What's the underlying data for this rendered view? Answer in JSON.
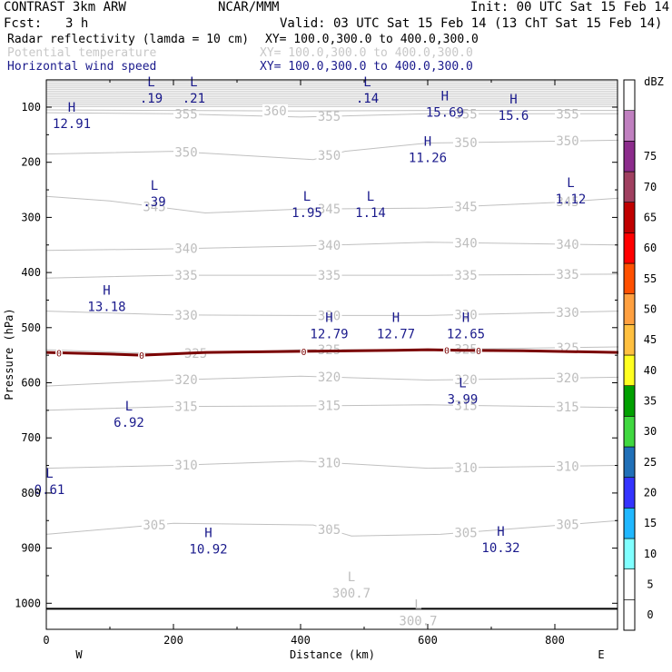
{
  "header": {
    "model": "CONTRAST  3km ARW",
    "org": "NCAR/MMM",
    "init": "Init: 00 UTC Sat 15 Feb 14",
    "fcst_label": "Fcst:",
    "fcst_value": "3 h",
    "valid": "Valid: 03 UTC Sat 15 Feb 14 (13 ChT Sat 15 Feb 14)",
    "fields": [
      {
        "label": "Radar reflectivity (lamda = 10 cm)",
        "xy": "XY= 100.0,300.0 to 400.0,300.0",
        "color": "#000000"
      },
      {
        "label": "Potential temperature",
        "xy": "XY= 100.0,300.0 to 400.0,300.0",
        "color": "#c8c8c8"
      },
      {
        "label": "Horizontal wind speed",
        "xy": "XY= 100.0,300.0 to 400.0,300.0",
        "color": "#1a1a8c"
      }
    ]
  },
  "chart_data": {
    "type": "cross-section",
    "xlabel": "Distance (km)",
    "ylabel": "Pressure (hPa)",
    "xlim": [
      0,
      900
    ],
    "ylim": [
      1045,
      45
    ],
    "x_ticks": [
      0,
      200,
      400,
      600,
      800
    ],
    "y_ticks": [
      100,
      200,
      300,
      400,
      500,
      600,
      700,
      800,
      900,
      1000
    ],
    "corner_labels": {
      "left": "W",
      "right": "E"
    },
    "theta_lines": [
      {
        "level": 305,
        "points": [
          [
            0,
            875
          ],
          [
            200,
            855
          ],
          [
            420,
            858
          ],
          [
            480,
            878
          ],
          [
            620,
            875
          ],
          [
            900,
            850
          ]
        ],
        "labels": [
          [
            170,
            "305"
          ],
          [
            445,
            "305"
          ],
          [
            660,
            "305"
          ],
          [
            820,
            "305"
          ]
        ]
      },
      {
        "level": 310,
        "points": [
          [
            0,
            755
          ],
          [
            200,
            750
          ],
          [
            400,
            742
          ],
          [
            600,
            755
          ],
          [
            900,
            750
          ]
        ],
        "labels": [
          [
            220,
            "310"
          ],
          [
            445,
            "310"
          ],
          [
            660,
            "310"
          ],
          [
            820,
            "310"
          ]
        ]
      },
      {
        "level": 315,
        "points": [
          [
            0,
            650
          ],
          [
            200,
            643
          ],
          [
            400,
            642
          ],
          [
            600,
            640
          ],
          [
            900,
            645
          ]
        ],
        "labels": [
          [
            220,
            "315"
          ],
          [
            445,
            "315"
          ],
          [
            660,
            "315"
          ],
          [
            820,
            "315"
          ]
        ]
      },
      {
        "level": 320,
        "points": [
          [
            0,
            606
          ],
          [
            200,
            595
          ],
          [
            400,
            588
          ],
          [
            600,
            595
          ],
          [
            900,
            590
          ]
        ],
        "labels": [
          [
            220,
            "320"
          ],
          [
            445,
            "320"
          ],
          [
            660,
            "320"
          ],
          [
            820,
            "320"
          ]
        ]
      },
      {
        "level": 325,
        "points": [
          [
            0,
            540
          ],
          [
            200,
            548
          ],
          [
            400,
            540
          ],
          [
            600,
            540
          ],
          [
            900,
            535
          ]
        ],
        "labels": [
          [
            235,
            "325"
          ],
          [
            445,
            "325"
          ],
          [
            660,
            "325"
          ],
          [
            820,
            "325"
          ]
        ]
      },
      {
        "level": 330,
        "points": [
          [
            0,
            470
          ],
          [
            200,
            477
          ],
          [
            400,
            478
          ],
          [
            600,
            478
          ],
          [
            900,
            470
          ]
        ],
        "labels": [
          [
            220,
            "330"
          ],
          [
            445,
            "330"
          ],
          [
            660,
            "330"
          ],
          [
            820,
            "330"
          ]
        ]
      },
      {
        "level": 335,
        "points": [
          [
            0,
            410
          ],
          [
            200,
            405
          ],
          [
            400,
            405
          ],
          [
            600,
            405
          ],
          [
            900,
            403
          ]
        ],
        "labels": [
          [
            220,
            "335"
          ],
          [
            445,
            "335"
          ],
          [
            660,
            "335"
          ],
          [
            820,
            "335"
          ]
        ]
      },
      {
        "level": 340,
        "points": [
          [
            0,
            360
          ],
          [
            200,
            357
          ],
          [
            400,
            352
          ],
          [
            600,
            345
          ],
          [
            900,
            350
          ]
        ],
        "labels": [
          [
            220,
            "340"
          ],
          [
            445,
            "340"
          ],
          [
            660,
            "340"
          ],
          [
            820,
            "340"
          ]
        ]
      },
      {
        "level": 345,
        "points": [
          [
            0,
            262
          ],
          [
            100,
            270
          ],
          [
            250,
            292
          ],
          [
            400,
            285
          ],
          [
            600,
            283
          ],
          [
            800,
            273
          ],
          [
            900,
            265
          ]
        ],
        "labels": [
          [
            170,
            "345"
          ],
          [
            445,
            "345"
          ],
          [
            660,
            "345"
          ],
          [
            820,
            "345"
          ]
        ]
      },
      {
        "level": 350,
        "points": [
          [
            0,
            185
          ],
          [
            200,
            180
          ],
          [
            420,
            195
          ],
          [
            470,
            180
          ],
          [
            600,
            165
          ],
          [
            900,
            160
          ]
        ],
        "labels": [
          [
            220,
            "350"
          ],
          [
            445,
            "350"
          ],
          [
            660,
            "350"
          ],
          [
            820,
            "350"
          ]
        ]
      },
      {
        "level": 355,
        "points": [
          [
            0,
            110
          ],
          [
            200,
            112
          ],
          [
            400,
            118
          ],
          [
            600,
            112
          ],
          [
            900,
            112
          ]
        ],
        "labels": [
          [
            220,
            "355"
          ],
          [
            445,
            "355"
          ],
          [
            660,
            "355"
          ],
          [
            820,
            "355"
          ]
        ]
      },
      {
        "level": 360,
        "points": [
          [
            0,
            105
          ],
          [
            200,
            106
          ],
          [
            400,
            107
          ],
          [
            600,
            106
          ],
          [
            900,
            106
          ]
        ],
        "labels": [
          [
            360,
            "360"
          ]
        ]
      }
    ],
    "zero_dbz_line": {
      "value": "0",
      "points": [
        [
          0,
          545
        ],
        [
          100,
          548
        ],
        [
          150,
          550
        ],
        [
          250,
          545
        ],
        [
          400,
          543
        ],
        [
          550,
          541
        ],
        [
          600,
          540
        ],
        [
          650,
          541
        ],
        [
          750,
          542
        ],
        [
          900,
          545
        ]
      ],
      "labels": [
        20,
        150,
        405,
        630,
        680
      ]
    },
    "wind_extrema": [
      {
        "type": "H",
        "value": "12.91",
        "x": 40,
        "p": 108
      },
      {
        "type": "L",
        "value": ".19",
        "x": 165,
        "p": 62
      },
      {
        "type": "L",
        "value": ".21",
        "x": 232,
        "p": 62
      },
      {
        "type": "L",
        "value": ".14",
        "x": 505,
        "p": 62
      },
      {
        "type": "H",
        "value": "15.69",
        "x": 627,
        "p": 88
      },
      {
        "type": "H",
        "value": "15.6",
        "x": 735,
        "p": 93
      },
      {
        "type": "H",
        "value": "11.26",
        "x": 600,
        "p": 170
      },
      {
        "type": "L",
        "value": ".39",
        "x": 170,
        "p": 250
      },
      {
        "type": "L",
        "value": "1.95",
        "x": 410,
        "p": 270
      },
      {
        "type": "L",
        "value": "1.14",
        "x": 510,
        "p": 270
      },
      {
        "type": "L",
        "value": "1.12",
        "x": 825,
        "p": 245
      },
      {
        "type": "H",
        "value": "13.18",
        "x": 95,
        "p": 440
      },
      {
        "type": "H",
        "value": "12.79",
        "x": 445,
        "p": 490
      },
      {
        "type": "H",
        "value": "12.77",
        "x": 550,
        "p": 490
      },
      {
        "type": "H",
        "value": "12.65",
        "x": 660,
        "p": 490
      },
      {
        "type": "L",
        "value": "3.99",
        "x": 655,
        "p": 608
      },
      {
        "type": "L",
        "value": "6.92",
        "x": 130,
        "p": 650
      },
      {
        "type": "L",
        "value": "0.61",
        "x": 5,
        "p": 772
      },
      {
        "type": "H",
        "value": "10.92",
        "x": 255,
        "p": 880
      },
      {
        "type": "H",
        "value": "10.32",
        "x": 715,
        "p": 878
      }
    ],
    "theta_extrema": [
      {
        "type": "L",
        "value": "300.7",
        "x": 480,
        "p": 960
      },
      {
        "type": "L",
        "value": "300.7",
        "x": 585,
        "p": 1010
      }
    ],
    "colorbar": {
      "unit": "dBZ",
      "levels": [
        {
          "label": "0",
          "color": "#ffffff"
        },
        {
          "label": "5",
          "color": "#ffffff"
        },
        {
          "label": "10",
          "color": "#80ffff"
        },
        {
          "label": "15",
          "color": "#20b8ff"
        },
        {
          "label": "20",
          "color": "#3434ff"
        },
        {
          "label": "25",
          "color": "#2070b8"
        },
        {
          "label": "30",
          "color": "#40d840"
        },
        {
          "label": "35",
          "color": "#00a000"
        },
        {
          "label": "40",
          "color": "#ffff20"
        },
        {
          "label": "45",
          "color": "#ffc040"
        },
        {
          "label": "50",
          "color": "#ffa040"
        },
        {
          "label": "55",
          "color": "#ff5000"
        },
        {
          "label": "60",
          "color": "#ff0000"
        },
        {
          "label": "65",
          "color": "#c00000"
        },
        {
          "label": "70",
          "color": "#a04060"
        },
        {
          "label": "75",
          "color": "#8c2c8c"
        },
        {
          "label": "",
          "color": "#c080c0"
        },
        {
          "label": "",
          "color": "#ffffff"
        }
      ]
    }
  }
}
